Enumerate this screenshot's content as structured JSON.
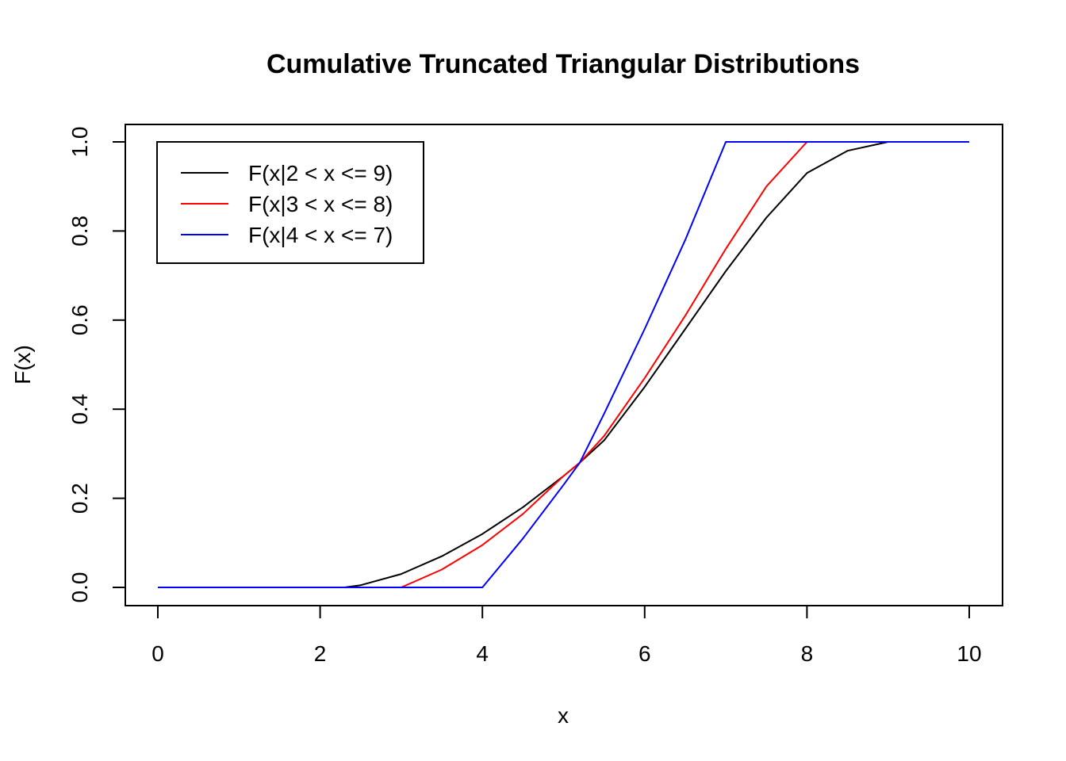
{
  "chart_data": {
    "type": "line",
    "title": "Cumulative Truncated Triangular Distributions",
    "xlabel": "x",
    "ylabel": "F(x)",
    "xlim": [
      0,
      10
    ],
    "ylim": [
      0,
      1
    ],
    "x_ticks": [
      "0",
      "2",
      "4",
      "6",
      "8",
      "10"
    ],
    "y_ticks": [
      "0.0",
      "0.2",
      "0.4",
      "0.6",
      "0.8",
      "1.0"
    ],
    "grid": false,
    "legend_position": "top-left",
    "series": [
      {
        "name": "F(x|2 < x <= 9)",
        "color": "#000000",
        "x": [
          0,
          2.3,
          2.5,
          3.0,
          3.5,
          4.0,
          4.5,
          5.0,
          5.2,
          5.5,
          6.0,
          6.5,
          7.0,
          7.5,
          8.0,
          8.5,
          9.0,
          10.0
        ],
        "y": [
          0,
          0,
          0.005,
          0.03,
          0.07,
          0.12,
          0.18,
          0.25,
          0.28,
          0.33,
          0.45,
          0.58,
          0.71,
          0.83,
          0.93,
          0.98,
          1.0,
          1.0
        ]
      },
      {
        "name": "F(x|3 < x <= 8)",
        "color": "#ff0000",
        "x": [
          0,
          3.0,
          3.5,
          4.0,
          4.5,
          5.0,
          5.2,
          5.5,
          6.0,
          6.5,
          7.0,
          7.5,
          8.0,
          10.0
        ],
        "y": [
          0,
          0,
          0.04,
          0.095,
          0.165,
          0.25,
          0.28,
          0.34,
          0.47,
          0.61,
          0.76,
          0.9,
          1.0,
          1.0
        ]
      },
      {
        "name": "F(x|4 < x <= 7)",
        "color": "#0000ff",
        "x": [
          0,
          4.0,
          4.5,
          5.0,
          5.2,
          5.5,
          6.0,
          6.5,
          7.0,
          10.0
        ],
        "y": [
          0,
          0,
          0.11,
          0.23,
          0.28,
          0.39,
          0.58,
          0.78,
          1.0,
          1.0
        ]
      }
    ]
  }
}
